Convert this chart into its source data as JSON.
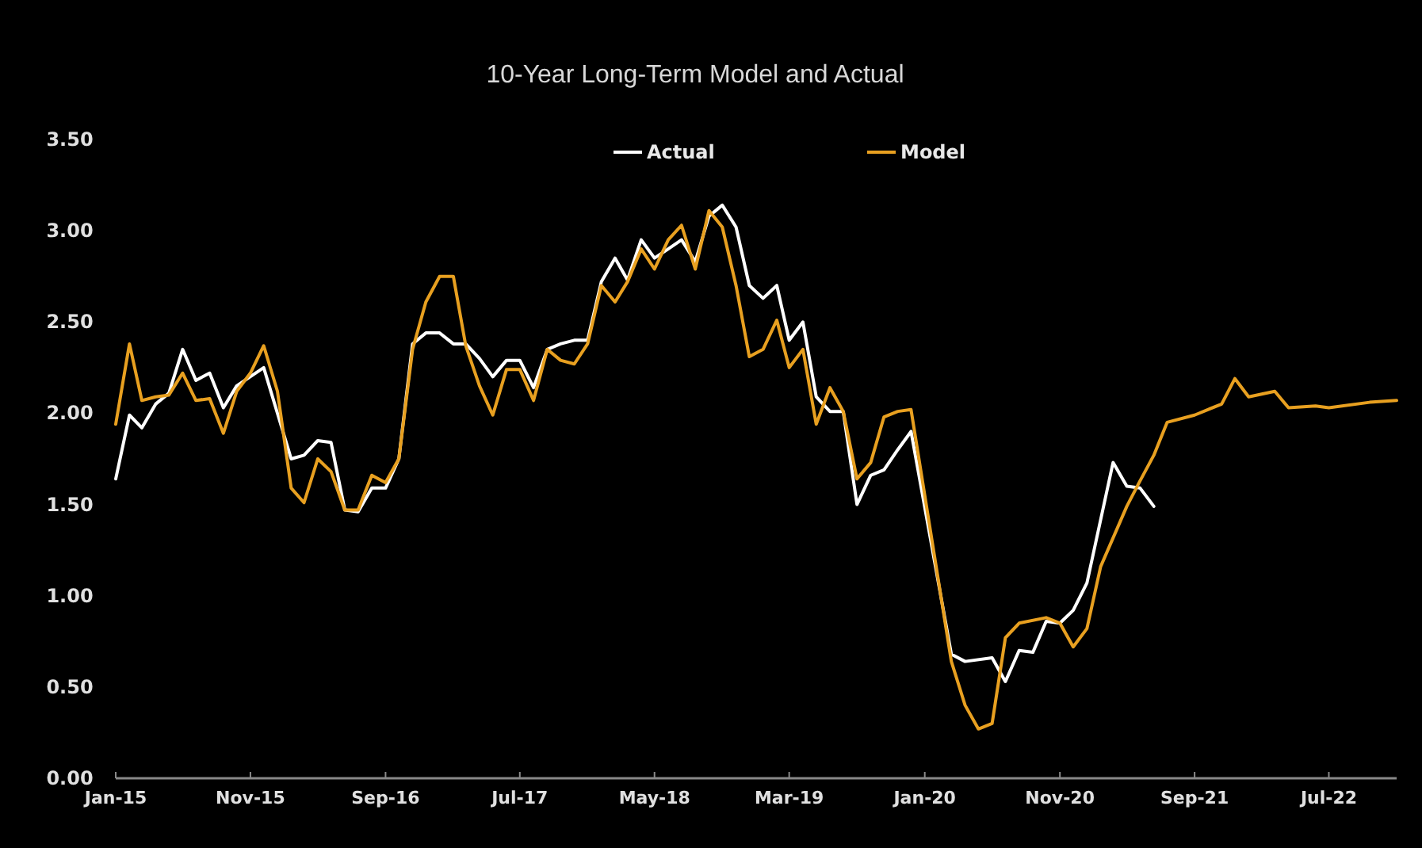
{
  "chart_data": {
    "type": "line",
    "title": "10-Year Long-Term Model and Actual",
    "legend": "top",
    "grid": false,
    "line_style": "solid",
    "xlim": [
      "2015-01",
      "2022-12"
    ],
    "xticks": [
      {
        "value": "2015-01",
        "label": "Jan-15"
      },
      {
        "value": "2015-11",
        "label": "Nov-15"
      },
      {
        "value": "2016-09",
        "label": "Sep-16"
      },
      {
        "value": "2017-07",
        "label": "Jul-17"
      },
      {
        "value": "2018-05",
        "label": "May-18"
      },
      {
        "value": "2019-03",
        "label": "Mar-19"
      },
      {
        "value": "2020-01",
        "label": "Jan-20"
      },
      {
        "value": "2020-11",
        "label": "Nov-20"
      },
      {
        "value": "2021-09",
        "label": "Sep-21"
      },
      {
        "value": "2022-07",
        "label": "Jul-22"
      }
    ],
    "ylim": [
      0,
      3.5
    ],
    "yticks": [
      {
        "value": 0,
        "label": "0.00"
      },
      {
        "value": 0.5,
        "label": "0.50"
      },
      {
        "value": 1,
        "label": "1.00"
      },
      {
        "value": 1.5,
        "label": "1.50"
      },
      {
        "value": 2,
        "label": "2.00"
      },
      {
        "value": 2.5,
        "label": "2.50"
      },
      {
        "value": 3,
        "label": "3.00"
      },
      {
        "value": 3.5,
        "label": "3.50"
      }
    ],
    "series": [
      {
        "name": "Actual",
        "color": "#ffffff",
        "x": [
          "2015-01",
          "2015-02",
          "2015-03",
          "2015-04",
          "2015-05",
          "2015-06",
          "2015-07",
          "2015-08",
          "2015-09",
          "2015-10",
          "2015-12",
          "2016-02",
          "2016-03",
          "2016-04",
          "2016-05",
          "2016-06",
          "2016-07",
          "2016-08",
          "2016-09",
          "2016-10",
          "2016-11",
          "2016-12",
          "2017-01",
          "2017-02",
          "2017-03",
          "2017-04",
          "2017-05",
          "2017-06",
          "2017-07",
          "2017-08",
          "2017-09",
          "2017-10",
          "2017-11",
          "2017-12",
          "2018-01",
          "2018-02",
          "2018-03",
          "2018-04",
          "2018-05",
          "2018-06",
          "2018-07",
          "2018-08",
          "2018-09",
          "2018-10",
          "2018-11",
          "2018-12",
          "2019-01",
          "2019-02",
          "2019-03",
          "2019-04",
          "2019-05",
          "2019-06",
          "2019-07",
          "2019-08",
          "2019-09",
          "2019-10",
          "2019-11",
          "2019-12",
          "2020-03",
          "2020-04",
          "2020-06",
          "2020-07",
          "2020-08",
          "2020-09",
          "2020-10",
          "2020-11",
          "2020-12",
          "2021-01",
          "2021-03",
          "2021-04",
          "2021-05",
          "2021-06"
        ],
        "values": [
          1.64,
          1.99,
          1.92,
          2.05,
          2.11,
          2.35,
          2.18,
          2.22,
          2.03,
          2.15,
          2.25,
          1.75,
          1.77,
          1.85,
          1.84,
          1.47,
          1.46,
          1.59,
          1.59,
          1.75,
          2.38,
          2.44,
          2.44,
          2.38,
          2.38,
          2.3,
          2.2,
          2.29,
          2.29,
          2.14,
          2.35,
          2.38,
          2.4,
          2.4,
          2.72,
          2.85,
          2.73,
          2.95,
          2.85,
          2.9,
          2.95,
          2.83,
          3.08,
          3.14,
          3.02,
          2.7,
          2.63,
          2.7,
          2.4,
          2.5,
          2.09,
          2.01,
          2.01,
          1.5,
          1.66,
          1.69,
          1.8,
          1.9,
          0.68,
          0.64,
          0.66,
          0.53,
          0.7,
          0.69,
          0.86,
          0.85,
          0.92,
          1.07,
          1.73,
          1.6,
          1.59,
          1.49
        ]
      },
      {
        "name": "Model",
        "color": "#e8a020",
        "x": [
          "2015-01",
          "2015-02",
          "2015-03",
          "2015-04",
          "2015-05",
          "2015-06",
          "2015-07",
          "2015-08",
          "2015-09",
          "2015-10",
          "2015-11",
          "2015-12",
          "2016-01",
          "2016-02",
          "2016-03",
          "2016-04",
          "2016-05",
          "2016-06",
          "2016-07",
          "2016-08",
          "2016-09",
          "2016-10",
          "2016-11",
          "2016-12",
          "2017-01",
          "2017-02",
          "2017-03",
          "2017-04",
          "2017-05",
          "2017-06",
          "2017-07",
          "2017-08",
          "2017-09",
          "2017-10",
          "2017-11",
          "2017-12",
          "2018-01",
          "2018-02",
          "2018-03",
          "2018-04",
          "2018-05",
          "2018-06",
          "2018-07",
          "2018-08",
          "2018-09",
          "2018-10",
          "2018-11",
          "2018-12",
          "2019-01",
          "2019-02",
          "2019-03",
          "2019-04",
          "2019-05",
          "2019-06",
          "2019-07",
          "2019-08",
          "2019-09",
          "2019-10",
          "2019-11",
          "2019-12",
          "2020-03",
          "2020-04",
          "2020-05",
          "2020-06",
          "2020-07",
          "2020-08",
          "2020-10",
          "2020-11",
          "2020-12",
          "2021-01",
          "2021-02",
          "2021-04",
          "2021-05",
          "2021-06",
          "2021-07",
          "2021-09",
          "2021-10",
          "2021-11",
          "2021-12",
          "2022-01",
          "2022-03",
          "2022-04",
          "2022-06",
          "2022-07",
          "2022-10",
          "2022-12"
        ],
        "values": [
          1.94,
          2.38,
          2.07,
          2.09,
          2.1,
          2.22,
          2.07,
          2.08,
          1.89,
          2.12,
          2.22,
          2.37,
          2.12,
          1.59,
          1.51,
          1.75,
          1.68,
          1.47,
          1.47,
          1.66,
          1.62,
          1.75,
          2.35,
          2.61,
          2.75,
          2.75,
          2.37,
          2.15,
          1.99,
          2.24,
          2.24,
          2.07,
          2.35,
          2.29,
          2.27,
          2.38,
          2.7,
          2.61,
          2.72,
          2.9,
          2.79,
          2.95,
          3.03,
          2.79,
          3.11,
          3.02,
          2.7,
          2.31,
          2.35,
          2.51,
          2.25,
          2.35,
          1.94,
          2.14,
          2.01,
          1.64,
          1.73,
          1.98,
          2.01,
          2.02,
          0.64,
          0.4,
          0.27,
          0.3,
          0.77,
          0.85,
          0.88,
          0.85,
          0.72,
          0.82,
          1.16,
          1.49,
          1.63,
          1.77,
          1.95,
          1.99,
          2.02,
          2.05,
          2.19,
          2.09,
          2.12,
          2.03,
          2.04,
          2.03,
          2.06,
          2.07
        ]
      }
    ]
  }
}
